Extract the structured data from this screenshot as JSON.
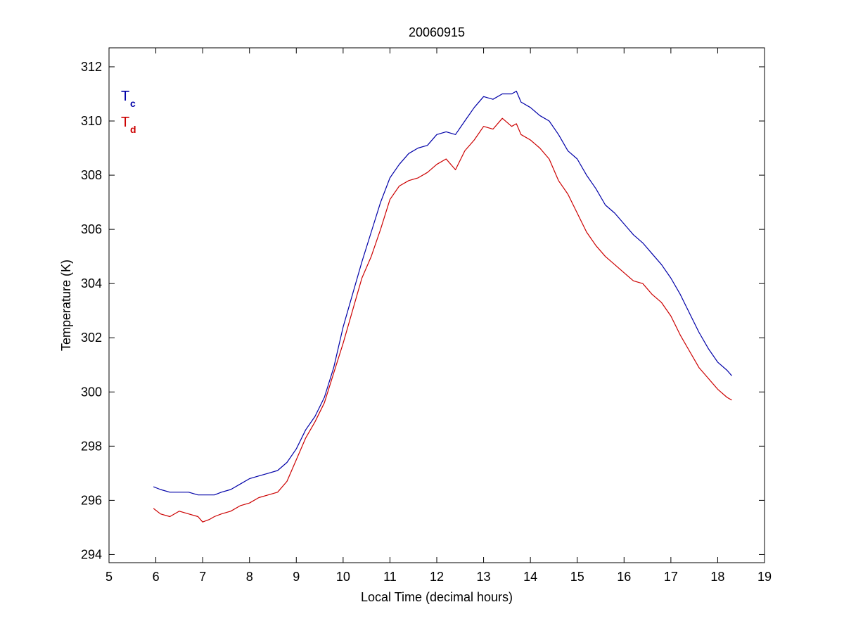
{
  "chart_data": {
    "type": "line",
    "title": "20060915",
    "xlabel": "Local Time (decimal hours)",
    "ylabel": "Temperature (K)",
    "xlim": [
      5,
      19
    ],
    "ylim": [
      293.7,
      312.7
    ],
    "xticks": [
      5,
      6,
      7,
      8,
      9,
      10,
      11,
      12,
      13,
      14,
      15,
      16,
      17,
      18,
      19
    ],
    "yticks": [
      294,
      296,
      298,
      300,
      302,
      304,
      306,
      308,
      310,
      312
    ],
    "grid": false,
    "legend_position": "top-left",
    "series": [
      {
        "name": "T",
        "subscript": "c",
        "color": "#0000a8",
        "x": [
          5.95,
          6.1,
          6.3,
          6.5,
          6.7,
          6.9,
          7.0,
          7.15,
          7.25,
          7.4,
          7.6,
          7.8,
          8.0,
          8.2,
          8.4,
          8.6,
          8.8,
          9.0,
          9.2,
          9.4,
          9.6,
          9.8,
          10.0,
          10.2,
          10.4,
          10.6,
          10.8,
          11.0,
          11.2,
          11.4,
          11.6,
          11.8,
          12.0,
          12.2,
          12.4,
          12.6,
          12.8,
          13.0,
          13.2,
          13.4,
          13.6,
          13.7,
          13.8,
          14.0,
          14.2,
          14.4,
          14.6,
          14.8,
          15.0,
          15.2,
          15.4,
          15.6,
          15.8,
          16.0,
          16.2,
          16.4,
          16.6,
          16.8,
          17.0,
          17.2,
          17.4,
          17.6,
          17.8,
          18.0,
          18.2,
          18.3
        ],
        "y": [
          296.5,
          296.4,
          296.3,
          296.3,
          296.3,
          296.2,
          296.2,
          296.2,
          296.2,
          296.3,
          296.4,
          296.6,
          296.8,
          296.9,
          297.0,
          297.1,
          297.4,
          297.9,
          298.6,
          299.1,
          299.8,
          300.9,
          302.4,
          303.6,
          304.8,
          305.9,
          307.0,
          307.9,
          308.4,
          308.8,
          309.0,
          309.1,
          309.5,
          309.6,
          309.5,
          310.0,
          310.5,
          310.9,
          310.8,
          311.0,
          311.0,
          311.1,
          310.7,
          310.5,
          310.2,
          310.0,
          309.5,
          308.9,
          308.6,
          308.0,
          307.5,
          306.9,
          306.6,
          306.2,
          305.8,
          305.5,
          305.1,
          304.7,
          304.2,
          303.6,
          302.9,
          302.2,
          301.6,
          301.1,
          300.8,
          300.6
        ]
      },
      {
        "name": "T",
        "subscript": "d",
        "color": "#cc0000",
        "x": [
          5.95,
          6.1,
          6.3,
          6.5,
          6.7,
          6.9,
          7.0,
          7.15,
          7.25,
          7.4,
          7.6,
          7.8,
          8.0,
          8.2,
          8.4,
          8.6,
          8.8,
          9.0,
          9.2,
          9.4,
          9.6,
          9.8,
          10.0,
          10.2,
          10.4,
          10.6,
          10.8,
          11.0,
          11.2,
          11.4,
          11.6,
          11.8,
          12.0,
          12.2,
          12.4,
          12.6,
          12.8,
          13.0,
          13.2,
          13.4,
          13.6,
          13.7,
          13.8,
          14.0,
          14.2,
          14.4,
          14.6,
          14.8,
          15.0,
          15.2,
          15.4,
          15.6,
          15.8,
          16.0,
          16.2,
          16.4,
          16.6,
          16.8,
          17.0,
          17.2,
          17.4,
          17.6,
          17.8,
          18.0,
          18.2,
          18.3
        ],
        "y": [
          295.7,
          295.5,
          295.4,
          295.6,
          295.5,
          295.4,
          295.2,
          295.3,
          295.4,
          295.5,
          295.6,
          295.8,
          295.9,
          296.1,
          296.2,
          296.3,
          296.7,
          297.5,
          298.3,
          298.9,
          299.6,
          300.7,
          301.8,
          303.0,
          304.2,
          305.0,
          306.0,
          307.1,
          307.6,
          307.8,
          307.9,
          308.1,
          308.4,
          308.6,
          308.2,
          308.9,
          309.3,
          309.8,
          309.7,
          310.1,
          309.8,
          309.9,
          309.5,
          309.3,
          309.0,
          308.6,
          307.8,
          307.3,
          306.6,
          305.9,
          305.4,
          305.0,
          304.7,
          304.4,
          304.1,
          304.0,
          303.6,
          303.3,
          302.8,
          302.1,
          301.5,
          300.9,
          300.5,
          300.1,
          299.8,
          299.7
        ]
      }
    ]
  }
}
